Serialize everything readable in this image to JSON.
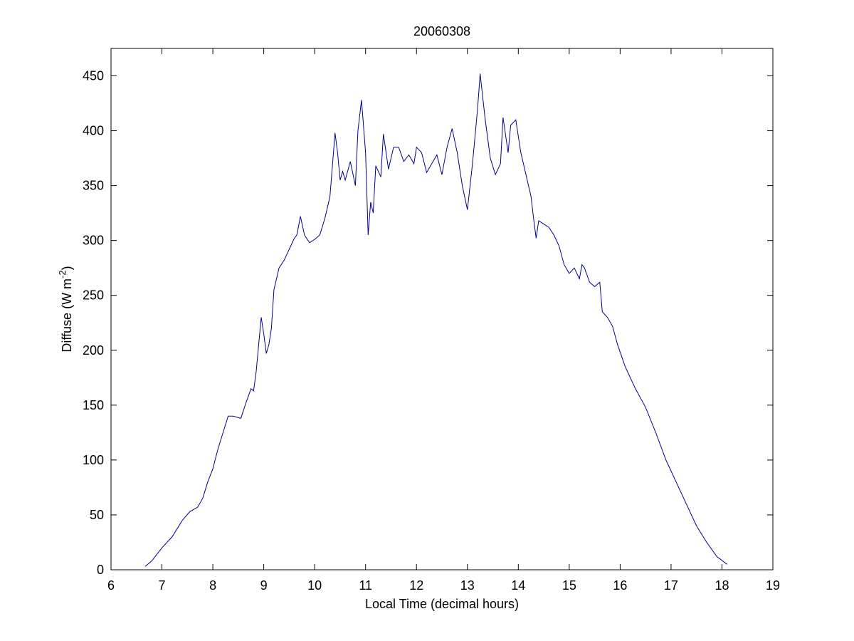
{
  "chart_data": {
    "type": "line",
    "title": "20060308",
    "xlabel": "Local Time (decimal hours)",
    "ylabel": [
      "Diffuse (W m",
      "-2",
      ")"
    ],
    "xlim": [
      6,
      19
    ],
    "ylim": [
      0,
      475
    ],
    "xticks": [
      6,
      7,
      8,
      9,
      10,
      11,
      12,
      13,
      14,
      15,
      16,
      17,
      18,
      19
    ],
    "yticks": [
      0,
      50,
      100,
      150,
      200,
      250,
      300,
      350,
      400,
      450
    ],
    "grid": false,
    "series": [
      {
        "color": "#00008f",
        "x": [
          6.67,
          6.8,
          7.0,
          7.2,
          7.4,
          7.55,
          7.7,
          7.8,
          7.9,
          8.0,
          8.1,
          8.2,
          8.3,
          8.4,
          8.55,
          8.65,
          8.75,
          8.8,
          8.85,
          8.9,
          8.95,
          9.0,
          9.05,
          9.1,
          9.15,
          9.2,
          9.3,
          9.4,
          9.5,
          9.6,
          9.65,
          9.72,
          9.8,
          9.9,
          10.0,
          10.1,
          10.2,
          10.3,
          10.4,
          10.45,
          10.5,
          10.55,
          10.6,
          10.7,
          10.8,
          10.85,
          10.92,
          11.0,
          11.05,
          11.1,
          11.15,
          11.2,
          11.3,
          11.35,
          11.45,
          11.55,
          11.65,
          11.75,
          11.85,
          11.95,
          12.0,
          12.1,
          12.2,
          12.3,
          12.4,
          12.5,
          12.6,
          12.7,
          12.8,
          12.9,
          13.0,
          13.1,
          13.2,
          13.25,
          13.35,
          13.45,
          13.55,
          13.65,
          13.7,
          13.8,
          13.85,
          13.95,
          14.05,
          14.15,
          14.25,
          14.3,
          14.35,
          14.4,
          14.5,
          14.6,
          14.7,
          14.8,
          14.9,
          15.0,
          15.1,
          15.2,
          15.25,
          15.3,
          15.4,
          15.5,
          15.6,
          15.65,
          15.75,
          15.85,
          15.95,
          16.1,
          16.3,
          16.5,
          16.7,
          16.9,
          17.1,
          17.3,
          17.5,
          17.7,
          17.9,
          18.1
        ],
        "values": [
          3,
          8,
          20,
          30,
          45,
          53,
          57,
          65,
          80,
          92,
          110,
          125,
          140,
          140,
          138,
          152,
          165,
          163,
          180,
          205,
          230,
          215,
          197,
          205,
          220,
          255,
          275,
          282,
          292,
          302,
          305,
          322,
          305,
          298,
          301,
          305,
          320,
          340,
          398,
          380,
          355,
          363,
          355,
          372,
          350,
          400,
          428,
          380,
          305,
          335,
          325,
          368,
          358,
          397,
          365,
          385,
          385,
          372,
          378,
          370,
          385,
          380,
          362,
          370,
          378,
          360,
          385,
          402,
          380,
          350,
          328,
          370,
          420,
          452,
          410,
          375,
          360,
          370,
          412,
          380,
          405,
          410,
          380,
          360,
          340,
          320,
          302,
          318,
          315,
          312,
          305,
          295,
          278,
          270,
          275,
          265,
          278,
          275,
          262,
          258,
          262,
          235,
          230,
          222,
          205,
          185,
          165,
          148,
          125,
          100,
          80,
          60,
          40,
          25,
          12,
          5
        ]
      }
    ]
  }
}
